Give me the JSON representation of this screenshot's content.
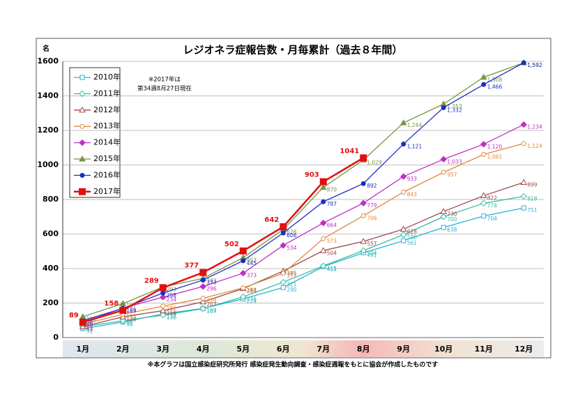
{
  "chart_data": {
    "type": "line",
    "title": "レジオネラ症報告数・月毎累計（過去８年間）",
    "ylabel": "名",
    "note": [
      "※2017年は",
      "第34週8月27日現在"
    ],
    "footnote": "※本グラフは国立感染症研究所発行 感染症発生動向調査・感染症週報をもとに協会が作成したものです",
    "categories": [
      "1月",
      "2月",
      "3月",
      "4月",
      "5月",
      "6月",
      "7月",
      "8月",
      "9月",
      "10月",
      "11月",
      "12月"
    ],
    "ylim": [
      0,
      1600
    ],
    "yticks": [
      0,
      200,
      400,
      600,
      800,
      1000,
      1200,
      1400,
      1600
    ],
    "grid": true,
    "legend": "upper left",
    "series": [
      {
        "name": "2010年",
        "color": "#2bb0d4",
        "marker": "square",
        "filled": false,
        "values": [
          51,
          90,
          137,
          169,
          224,
          290,
          411,
          491,
          561,
          638,
          704,
          751
        ]
      },
      {
        "name": "2011年",
        "color": "#36bca4",
        "marker": "diamond",
        "filled": false,
        "values": [
          62,
          98,
          130,
          167,
          236,
          321,
          415,
          504,
          596,
          700,
          778,
          818
        ]
      },
      {
        "name": "2012年",
        "color": "#9a4848",
        "marker": "triangle",
        "filled": false,
        "values": [
          63,
          120,
          156,
          207,
          284,
          385,
          504,
          557,
          628,
          730,
          822,
          899
        ]
      },
      {
        "name": "2013年",
        "color": "#e0883a",
        "marker": "circle",
        "filled": false,
        "values": [
          77,
          135,
          182,
          228,
          288,
          372,
          573,
          706,
          843,
          957,
          1061,
          1124
        ],
        "value_labels": [
          "77",
          "135",
          "182",
          "228",
          "288",
          "372",
          "573",
          "706",
          "843",
          "957",
          "1,061",
          "1,124"
        ]
      },
      {
        "name": "2014年",
        "color": "#c02ec4",
        "marker": "diamond",
        "filled": true,
        "values": [
          86,
          171,
          234,
          296,
          373,
          534,
          664,
          779,
          933,
          1033,
          1120,
          1234
        ],
        "value_labels": [
          "86",
          "171",
          "234",
          "296",
          "373",
          "534",
          "664",
          "779",
          "933",
          "1,033",
          "1,120",
          "1,234"
        ]
      },
      {
        "name": "2015年",
        "color": "#7a9440",
        "marker": "triangle",
        "filled": true,
        "values": [
          121,
          197,
          293,
          343,
          463,
          626,
          870,
          1029,
          1244,
          1353,
          1508,
          1592
        ],
        "value_labels": [
          "121",
          "197",
          "293",
          "343",
          "463",
          "626",
          "870",
          "1,029",
          "1,244",
          "1,353",
          "1,508",
          "1,592"
        ]
      },
      {
        "name": "2016年",
        "color": "#1a2ec4",
        "marker": "circle",
        "filled": true,
        "values": [
          98,
          169,
          258,
          333,
          445,
          606,
          787,
          892,
          1121,
          1332,
          1466,
          1592
        ],
        "value_labels": [
          "98",
          "169",
          "258",
          "333",
          "445",
          "606",
          "787",
          "892",
          "1,121",
          "1,332",
          "1,466",
          "1,592"
        ]
      },
      {
        "name": "2017年",
        "color": "#e01010",
        "marker": "square",
        "filled": true,
        "values": [
          89,
          158,
          289,
          377,
          502,
          642,
          903,
          1041,
          null,
          null,
          null,
          null
        ]
      }
    ]
  }
}
